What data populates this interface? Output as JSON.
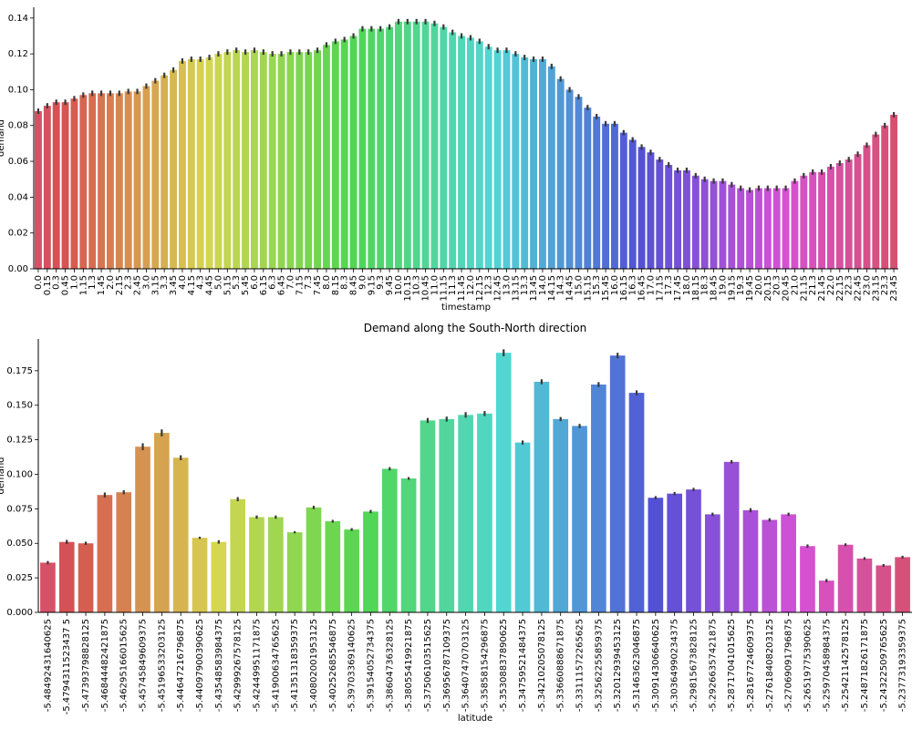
{
  "chart_data": [
    {
      "type": "bar",
      "title": "",
      "xlabel": "timestamp",
      "ylabel": "demand",
      "ylim": [
        0,
        0.146
      ],
      "yticks": [
        "0.00",
        "0.02",
        "0.04",
        "0.06",
        "0.08",
        "0.10",
        "0.12",
        "0.14"
      ],
      "grid": false,
      "legend": "none",
      "palette": "husl",
      "error_bars": true,
      "categories": [
        "0.0",
        "0.15",
        "0.30",
        "0.45",
        "1.0",
        "1.15",
        "1.30",
        "1.45",
        "2.0",
        "2.15",
        "2.30",
        "2.45",
        "3.0",
        "3.15",
        "3.30",
        "3.45",
        "4.0",
        "4.15",
        "4.30",
        "4.45",
        "5.0",
        "5.15",
        "5.30",
        "5.45",
        "6.0",
        "6.15",
        "6.30",
        "6.45",
        "7.0",
        "7.15",
        "7.30",
        "7.45",
        "8.0",
        "8.15",
        "8.30",
        "8.45",
        "9.0",
        "9.15",
        "9.30",
        "9.45",
        "10.0",
        "10.15",
        "10.30",
        "10.45",
        "11.0",
        "11.15",
        "11.30",
        "11.45",
        "12.0",
        "12.15",
        "12.30",
        "12.45",
        "13.0",
        "13.15",
        "13.30",
        "13.45",
        "14.0",
        "14.15",
        "14.30",
        "14.45",
        "15.0",
        "15.15",
        "15.30",
        "15.45",
        "16.0",
        "16.15",
        "16.30",
        "16.45",
        "17.0",
        "17.15",
        "17.30",
        "17.45",
        "18.0",
        "18.15",
        "18.30",
        "18.45",
        "19.0",
        "19.15",
        "19.30",
        "19.45",
        "20.0",
        "20.15",
        "20.30",
        "20.45",
        "21.0",
        "21.15",
        "21.30",
        "21.45",
        "22.0",
        "22.15",
        "22.30",
        "22.45",
        "23.0",
        "23.15",
        "23.30",
        "23.45"
      ],
      "tick_labels": [
        "0.0",
        "0.15",
        "0.3",
        "0.45",
        "1.0",
        "1.15",
        "1.3",
        "1.45",
        "2.0",
        "2.15",
        "2.3",
        "2.45",
        "3.0",
        "3.15",
        "3.3",
        "3.45",
        "4.0",
        "4.15",
        "4.3",
        "4.45",
        "5.0",
        "5.15",
        "5.3",
        "5.45",
        "6.0",
        "6.15",
        "6.3",
        "6.45",
        "7.0",
        "7.15",
        "7.3",
        "7.45",
        "8.0",
        "8.15",
        "8.3",
        "8.45",
        "9.0",
        "9.15",
        "9.3",
        "9.45",
        "10.0",
        "10.15",
        "10.3",
        "10.45",
        "11.0",
        "11.15",
        "11.3",
        "11.45",
        "12.0",
        "12.15",
        "12.3",
        "12.45",
        "13.0",
        "13.15",
        "13.3",
        "13.45",
        "14.0",
        "14.15",
        "14.3",
        "14.45",
        "15.0",
        "15.15",
        "15.3",
        "15.45",
        "16.0",
        "16.15",
        "16.3",
        "16.45",
        "17.0",
        "17.15",
        "17.3",
        "17.45",
        "18.0",
        "18.15",
        "18.3",
        "18.45",
        "19.0",
        "19.15",
        "19.3",
        "19.45",
        "20.0",
        "20.15",
        "20.3",
        "20.45",
        "21.0",
        "21.15",
        "21.3",
        "21.45",
        "22.0",
        "22.15",
        "22.3",
        "22.45",
        "23.0",
        "23.15",
        "23.3",
        "23.45"
      ],
      "values": [
        0.088,
        0.091,
        0.093,
        0.093,
        0.095,
        0.097,
        0.098,
        0.098,
        0.098,
        0.098,
        0.099,
        0.099,
        0.102,
        0.105,
        0.108,
        0.111,
        0.116,
        0.117,
        0.117,
        0.118,
        0.12,
        0.121,
        0.122,
        0.121,
        0.122,
        0.121,
        0.12,
        0.12,
        0.121,
        0.121,
        0.121,
        0.122,
        0.125,
        0.127,
        0.128,
        0.13,
        0.134,
        0.134,
        0.134,
        0.135,
        0.138,
        0.138,
        0.138,
        0.138,
        0.137,
        0.135,
        0.132,
        0.13,
        0.129,
        0.127,
        0.124,
        0.122,
        0.122,
        0.12,
        0.118,
        0.117,
        0.117,
        0.113,
        0.106,
        0.1,
        0.096,
        0.09,
        0.085,
        0.081,
        0.081,
        0.076,
        0.072,
        0.068,
        0.065,
        0.061,
        0.058,
        0.055,
        0.055,
        0.052,
        0.05,
        0.049,
        0.049,
        0.047,
        0.045,
        0.044,
        0.045,
        0.045,
        0.045,
        0.045,
        0.049,
        0.052,
        0.054,
        0.054,
        0.057,
        0.059,
        0.061,
        0.064,
        0.069,
        0.075,
        0.08,
        0.086
      ],
      "errors": [
        0.0015,
        0.0015,
        0.0015,
        0.0015,
        0.0015,
        0.0015,
        0.0015,
        0.0015,
        0.0015,
        0.0015,
        0.0015,
        0.0015,
        0.0015,
        0.0015,
        0.0015,
        0.0015,
        0.0015,
        0.0015,
        0.0015,
        0.0015,
        0.0015,
        0.0015,
        0.0015,
        0.0015,
        0.0015,
        0.0015,
        0.0015,
        0.0015,
        0.0015,
        0.0015,
        0.0015,
        0.0015,
        0.0015,
        0.0015,
        0.0015,
        0.0015,
        0.0015,
        0.0015,
        0.0015,
        0.0015,
        0.0015,
        0.0015,
        0.0015,
        0.0015,
        0.0015,
        0.0015,
        0.0015,
        0.0015,
        0.0015,
        0.0015,
        0.0015,
        0.0015,
        0.0015,
        0.0015,
        0.0015,
        0.0015,
        0.0015,
        0.0015,
        0.0015,
        0.0015,
        0.0015,
        0.0015,
        0.0015,
        0.0015,
        0.0015,
        0.0015,
        0.0015,
        0.0015,
        0.0015,
        0.0015,
        0.0015,
        0.0015,
        0.0015,
        0.0015,
        0.0015,
        0.0015,
        0.0015,
        0.0015,
        0.0015,
        0.0015,
        0.0015,
        0.0015,
        0.0015,
        0.0015,
        0.0015,
        0.0015,
        0.0015,
        0.0015,
        0.0015,
        0.0015,
        0.0015,
        0.0015,
        0.0015,
        0.0015,
        0.0015,
        0.0015
      ]
    },
    {
      "type": "bar",
      "title": "Demand along the South-North direction",
      "xlabel": "latitude",
      "ylabel": "demand",
      "ylim": [
        0,
        0.198
      ],
      "yticks": [
        "0.000",
        "0.025",
        "0.050",
        "0.075",
        "0.100",
        "0.125",
        "0.150",
        "0.175"
      ],
      "grid": false,
      "legend": "none",
      "palette": "husl",
      "error_bars": true,
      "categories": [
        "-5.48492431640625",
        "-5.479431152343750",
        "-5.4739379882812500",
        "-5.4684448242187500",
        "-5.4629516601562500",
        "-5.4574584960937500",
        "-5.4519653320312500",
        "-5.4464721679687500",
        "-5.4409790039062500",
        "-5.4354858398437500",
        "-5.4299926757812500",
        "-5.4244995117187500",
        "-5.4190063476562500",
        "-5.4135131835937500",
        "-5.4080200195312500",
        "-5.4025268554687500",
        "-5.3970336914062500",
        "-5.3915405273437500",
        "-5.3860473632812500",
        "-5.3805541992187500",
        "-5.3750610351562500",
        "-5.3695678710937500",
        "-5.3640747070312500",
        "-5.3585815429687500",
        "-5.3530883789062500",
        "-5.3475952148437500",
        "-5.3421020507812500",
        "-5.3366088867187500",
        "-5.3311157226562500",
        "-5.3256225585937500",
        "-5.3201293945312500",
        "-5.3146362304687500",
        "-5.3091430664062500",
        "-5.3036499023437500",
        "-5.2981567382812500",
        "-5.2926635742187500",
        "-5.2871704101562500",
        "-5.2816772460937500",
        "-5.2761840820312500",
        "-5.2706909179687500",
        "-5.2651977539062500",
        "-5.2597045898437500",
        "-5.2542114257812500",
        "-5.2487182617187500",
        "-5.2432250976562500",
        "-5.2377319335937500"
      ],
      "tick_labels": [
        "-5.48492431640625",
        "-5.4794311523437 5",
        "-5.47393798828125",
        "-5.46844482421875",
        "-5.46295166015625",
        "-5.45745849609375",
        "-5.45196533203125",
        "-5.44647216796875",
        "-5.44097900390625",
        "-5.43548583984375",
        "-5.42999267578125",
        "-5.42449951171875",
        "-5.41900634765625",
        "-5.41351318359375",
        "-5.40802001953125",
        "-5.40252685546875",
        "-5.39703369140625",
        "-5.39154052734375",
        "-5.38604736328125",
        "-5.38055419921875",
        "-5.37506103515625",
        "-5.36956787109375",
        "-5.36407470703125",
        "-5.35858154296875",
        "-5.35308837890625",
        "-5.34759521484375",
        "-5.34210205078125",
        "-5.33660888671875",
        "-5.33111572265625",
        "-5.32562255859375",
        "-5.32012939453125",
        "-5.31463623046875",
        "-5.30914306640625",
        "-5.30364990234375",
        "-5.29815673828125",
        "-5.29266357421875",
        "-5.28717041015625",
        "-5.28167724609375",
        "-5.27618408203125",
        "-5.27069091796875",
        "-5.26519775390625",
        "-5.25970458984375",
        "-5.25421142578125",
        "-5.24871826171875",
        "-5.24322509765625",
        "-5.23773193359375"
      ],
      "values": [
        0.036,
        0.051,
        0.05,
        0.085,
        0.087,
        0.12,
        0.13,
        0.112,
        0.054,
        0.051,
        0.082,
        0.069,
        0.069,
        0.058,
        0.076,
        0.066,
        0.06,
        0.073,
        0.104,
        0.097,
        0.139,
        0.14,
        0.143,
        0.144,
        0.188,
        0.123,
        0.167,
        0.14,
        0.135,
        0.165,
        0.186,
        0.159,
        0.083,
        0.086,
        0.089,
        0.071,
        0.109,
        0.074,
        0.067,
        0.071,
        0.048,
        0.023,
        0.049,
        0.039,
        0.034,
        0.04
      ],
      "errors": [
        0.0012,
        0.0015,
        0.0012,
        0.0018,
        0.0015,
        0.0025,
        0.0025,
        0.0018,
        0.0008,
        0.0012,
        0.0015,
        0.0012,
        0.0012,
        0.0008,
        0.0012,
        0.001,
        0.001,
        0.0012,
        0.0012,
        0.001,
        0.0018,
        0.0018,
        0.002,
        0.0018,
        0.0025,
        0.0015,
        0.0018,
        0.0015,
        0.0015,
        0.0018,
        0.002,
        0.0018,
        0.0012,
        0.0012,
        0.0012,
        0.0012,
        0.0012,
        0.0015,
        0.0012,
        0.0012,
        0.0012,
        0.0012,
        0.001,
        0.001,
        0.001,
        0.001
      ]
    }
  ]
}
